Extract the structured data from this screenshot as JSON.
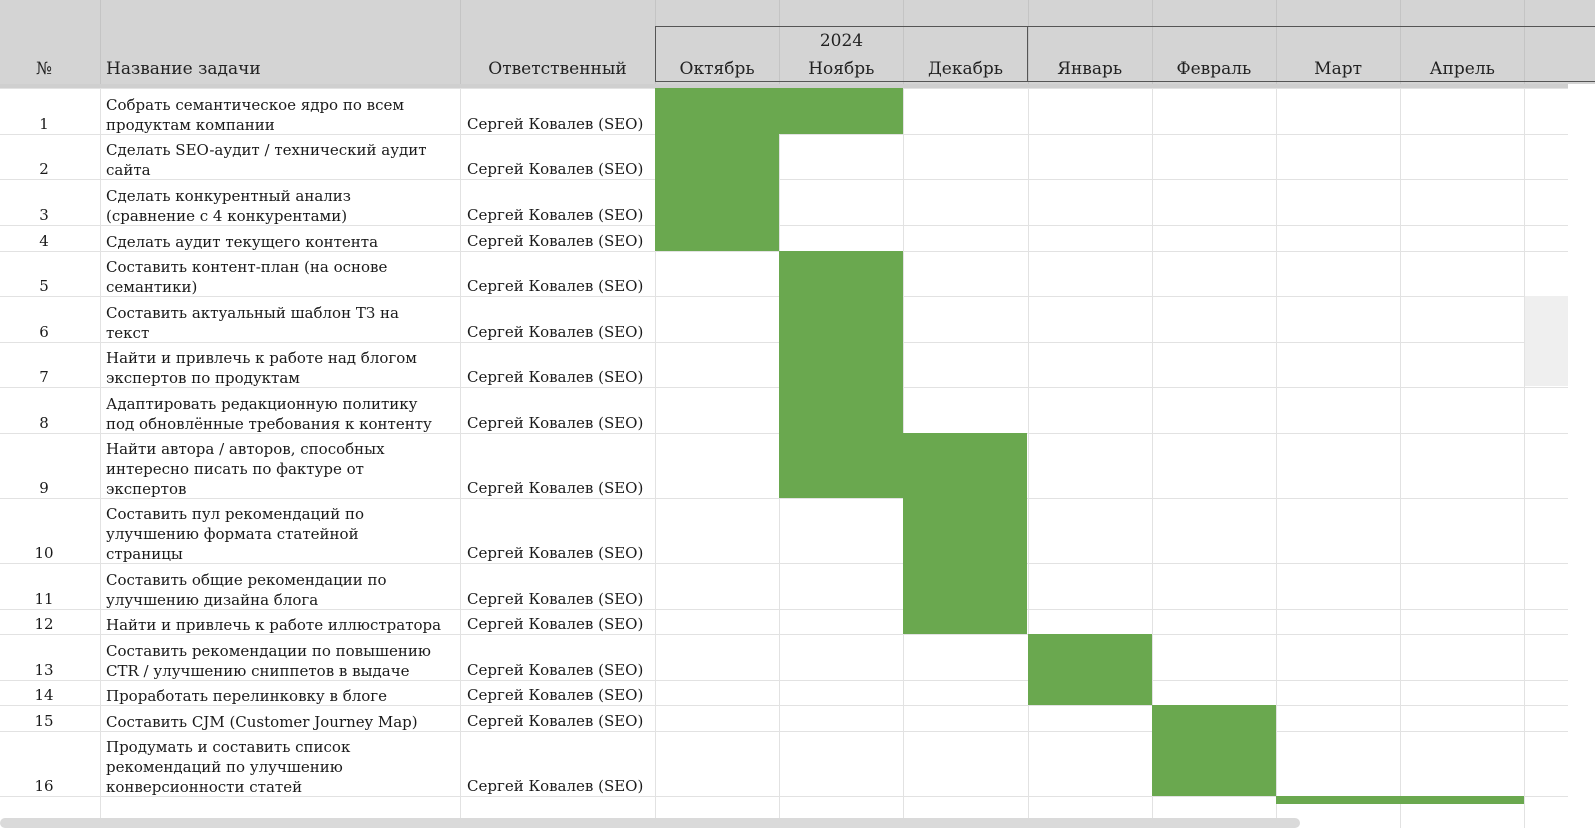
{
  "sheet": {
    "col_headers": {
      "num": "№",
      "task": "Название задачи",
      "owner": "Ответственный"
    },
    "year_label": "2024",
    "months": [
      "Октябрь",
      "Ноябрь",
      "Декабрь",
      "Январь",
      "Февраль",
      "Март",
      "Апрель"
    ],
    "bar_color": "#6aa84f",
    "rows": [
      {
        "num": "1",
        "task": "Собрать семантическое ядро по всем\nпродуктам компании",
        "owner": "Сергей Ковалев (SEO)",
        "months": [
          "Октябрь",
          "Ноябрь"
        ]
      },
      {
        "num": "2",
        "task": "Сделать SEO-аудит / технический аудит\nсайта",
        "owner": "Сергей Ковалев (SEO)",
        "months": [
          "Октябрь"
        ]
      },
      {
        "num": "3",
        "task": "Сделать конкурентный анализ\n(сравнение с 4 конкурентами)",
        "owner": "Сергей Ковалев (SEO)",
        "months": [
          "Октябрь"
        ]
      },
      {
        "num": "4",
        "task": "Сделать аудит текущего контента",
        "owner": "Сергей Ковалев (SEO)",
        "months": [
          "Октябрь"
        ]
      },
      {
        "num": "5",
        "task": "Составить контент-план (на основе\nсемантики)",
        "owner": "Сергей Ковалев (SEO)",
        "months": [
          "Ноябрь"
        ]
      },
      {
        "num": "6",
        "task": "Составить актуальный шаблон ТЗ на\nтекст",
        "owner": "Сергей Ковалев (SEO)",
        "months": [
          "Ноябрь"
        ]
      },
      {
        "num": "7",
        "task": "Найти и привлечь к работе над блогом\nэкспертов по продуктам",
        "owner": "Сергей Ковалев (SEO)",
        "months": [
          "Ноябрь"
        ]
      },
      {
        "num": "8",
        "task": "Адаптировать редакционную политику\nпод обновлённые требования к контенту",
        "owner": "Сергей Ковалев (SEO)",
        "months": [
          "Ноябрь"
        ]
      },
      {
        "num": "9",
        "task": "Найти автора / авторов, способных\nинтересно писать по фактуре от\nэкспертов",
        "owner": "Сергей Ковалев (SEO)",
        "months": [
          "Ноябрь",
          "Декабрь"
        ]
      },
      {
        "num": "10",
        "task": "Составить пул рекомендаций по\nулучшению формата статейной\nстраницы",
        "owner": "Сергей Ковалев (SEO)",
        "months": [
          "Декабрь"
        ]
      },
      {
        "num": "11",
        "task": "Составить общие рекомендации по\nулучшению дизайна блога",
        "owner": "Сергей Ковалев (SEO)",
        "months": [
          "Декабрь"
        ]
      },
      {
        "num": "12",
        "task": "Найти и привлечь к работе иллюстратора",
        "owner": "Сергей Ковалев (SEO)",
        "months": [
          "Декабрь"
        ]
      },
      {
        "num": "13",
        "task": "Составить рекомендации по повышению\nCTR / улучшению сниппетов в выдаче",
        "owner": "Сергей Ковалев (SEO)",
        "months": [
          "Январь"
        ]
      },
      {
        "num": "14",
        "task": "Проработать перелинковку в блоге",
        "owner": "Сергей Ковалев (SEO)",
        "months": [
          "Январь"
        ]
      },
      {
        "num": "15",
        "task": "Составить CJM (Customer Journey Map)",
        "owner": "Сергей Ковалев (SEO)",
        "months": [
          "Февраль"
        ]
      },
      {
        "num": "16",
        "task": "Продумать и составить список\nрекомендаций по улучшению\nконверсионности статей",
        "owner": "Сергей Ковалев (SEO)",
        "months": [
          "Февраль"
        ]
      },
      {
        "num": "",
        "task": "",
        "owner": "",
        "months": [
          "Март",
          "Апрель"
        ]
      }
    ]
  }
}
